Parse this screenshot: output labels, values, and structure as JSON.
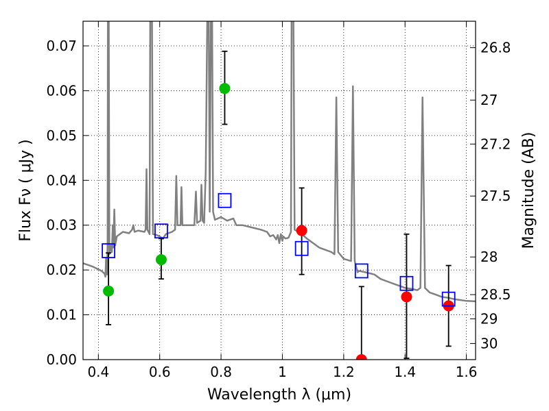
{
  "chart_data": {
    "type": "scatter",
    "xlabel": "Wavelength  λ (μm)",
    "ylabel": "Flux  Fν  ( μJy )",
    "y2label": "Magnitude (AB)",
    "xlim": [
      0.35,
      1.63
    ],
    "ylim": [
      0.0,
      0.0755
    ],
    "x_ticks": [
      0.4,
      0.6,
      0.8,
      1.0,
      1.2,
      1.4,
      1.6
    ],
    "x_tick_labels": [
      "0.4",
      "0.6",
      "0.8",
      "1",
      "1.2",
      "1.4",
      "1.6"
    ],
    "y_ticks": [
      0.0,
      0.01,
      0.02,
      0.03,
      0.04,
      0.05,
      0.06,
      0.07
    ],
    "y_tick_labels": [
      "0.00",
      "0.01",
      "0.02",
      "0.03",
      "0.04",
      "0.05",
      "0.06",
      "0.07"
    ],
    "y2_ticks": [
      {
        "label": "26.8",
        "flux": 0.0696
      },
      {
        "label": "27",
        "flux": 0.0579
      },
      {
        "label": "27.2",
        "flux": 0.0481
      },
      {
        "label": "27.5",
        "flux": 0.0365
      },
      {
        "label": "28",
        "flux": 0.0229
      },
      {
        "label": "28.5",
        "flux": 0.0145
      },
      {
        "label": "29",
        "flux": 0.0091
      },
      {
        "label": "30",
        "flux": 0.0036
      }
    ],
    "grid": true,
    "colors": {
      "spectrum": "#808080",
      "detection_green": "#00bb00",
      "detection_red": "#ff0000",
      "model_box": "#0000ff",
      "errorbar": "#000000"
    },
    "series": [
      {
        "type": "line",
        "points": [
          [
            0.35,
            0.0215
          ],
          [
            0.38,
            0.0208
          ],
          [
            0.41,
            0.0198
          ],
          [
            0.42,
            0.0192
          ],
          [
            0.423,
            0.0185
          ],
          [
            0.425,
            0.0225
          ],
          [
            0.428,
            0.019
          ],
          [
            0.43,
            0.0255
          ],
          [
            0.431,
            0.0758
          ],
          [
            0.434,
            0.0758
          ],
          [
            0.436,
            0.0235
          ],
          [
            0.44,
            0.0255
          ],
          [
            0.444,
            0.024
          ],
          [
            0.447,
            0.03
          ],
          [
            0.449,
            0.025
          ],
          [
            0.452,
            0.0335
          ],
          [
            0.455,
            0.0255
          ],
          [
            0.46,
            0.0275
          ],
          [
            0.48,
            0.0285
          ],
          [
            0.5,
            0.0282
          ],
          [
            0.51,
            0.029
          ],
          [
            0.514,
            0.03
          ],
          [
            0.518,
            0.0285
          ],
          [
            0.53,
            0.0288
          ],
          [
            0.55,
            0.0285
          ],
          [
            0.554,
            0.029
          ],
          [
            0.557,
            0.0425
          ],
          [
            0.56,
            0.029
          ],
          [
            0.567,
            0.028
          ],
          [
            0.569,
            0.0758
          ],
          [
            0.575,
            0.0758
          ],
          [
            0.578,
            0.028
          ],
          [
            0.59,
            0.0278
          ],
          [
            0.6,
            0.0275
          ],
          [
            0.61,
            0.027
          ],
          [
            0.62,
            0.028
          ],
          [
            0.64,
            0.0285
          ],
          [
            0.65,
            0.029
          ],
          [
            0.654,
            0.041
          ],
          [
            0.658,
            0.03
          ],
          [
            0.668,
            0.03
          ],
          [
            0.671,
            0.0385
          ],
          [
            0.674,
            0.03
          ],
          [
            0.7,
            0.03
          ],
          [
            0.713,
            0.03
          ],
          [
            0.718,
            0.0375
          ],
          [
            0.722,
            0.0305
          ],
          [
            0.733,
            0.031
          ],
          [
            0.736,
            0.039
          ],
          [
            0.74,
            0.031
          ],
          [
            0.745,
            0.0305
          ],
          [
            0.75,
            0.042
          ],
          [
            0.755,
            0.0758
          ],
          [
            0.76,
            0.0758
          ],
          [
            0.763,
            0.033
          ],
          [
            0.767,
            0.0758
          ],
          [
            0.771,
            0.0758
          ],
          [
            0.774,
            0.033
          ],
          [
            0.78,
            0.0312
          ],
          [
            0.8,
            0.0318
          ],
          [
            0.82,
            0.031
          ],
          [
            0.84,
            0.0315
          ],
          [
            0.85,
            0.03
          ],
          [
            0.87,
            0.03
          ],
          [
            0.9,
            0.0295
          ],
          [
            0.93,
            0.029
          ],
          [
            0.95,
            0.0285
          ],
          [
            0.96,
            0.0275
          ],
          [
            0.97,
            0.0278
          ],
          [
            0.98,
            0.0268
          ],
          [
            0.985,
            0.0278
          ],
          [
            0.99,
            0.026
          ],
          [
            0.995,
            0.028
          ],
          [
            1.0,
            0.0265
          ],
          [
            1.003,
            0.0275
          ],
          [
            1.01,
            0.027
          ],
          [
            1.02,
            0.0272
          ],
          [
            1.028,
            0.0285
          ],
          [
            1.03,
            0.0758
          ],
          [
            1.036,
            0.0758
          ],
          [
            1.04,
            0.029
          ],
          [
            1.06,
            0.0282
          ],
          [
            1.08,
            0.027
          ],
          [
            1.1,
            0.026
          ],
          [
            1.12,
            0.025
          ],
          [
            1.14,
            0.0245
          ],
          [
            1.16,
            0.024
          ],
          [
            1.17,
            0.0235
          ],
          [
            1.176,
            0.0585
          ],
          [
            1.182,
            0.024
          ],
          [
            1.2,
            0.0225
          ],
          [
            1.224,
            0.022
          ],
          [
            1.23,
            0.061
          ],
          [
            1.236,
            0.022
          ],
          [
            1.245,
            0.0195
          ],
          [
            1.25,
            0.0198
          ],
          [
            1.27,
            0.0195
          ],
          [
            1.3,
            0.019
          ],
          [
            1.32,
            0.018
          ],
          [
            1.34,
            0.0175
          ],
          [
            1.36,
            0.017
          ],
          [
            1.38,
            0.0165
          ],
          [
            1.4,
            0.016
          ],
          [
            1.42,
            0.0158
          ],
          [
            1.44,
            0.0155
          ],
          [
            1.45,
            0.016
          ],
          [
            1.457,
            0.0585
          ],
          [
            1.465,
            0.016
          ],
          [
            1.48,
            0.015
          ],
          [
            1.5,
            0.0145
          ],
          [
            1.52,
            0.014
          ],
          [
            1.54,
            0.0138
          ],
          [
            1.56,
            0.0135
          ],
          [
            1.58,
            0.0133
          ],
          [
            1.6,
            0.0131
          ],
          [
            1.63,
            0.013
          ]
        ]
      },
      {
        "type": "errorbar",
        "points": [
          {
            "x": 0.433,
            "y": 0.0153,
            "lo": 0.0078,
            "hi": 0.0238,
            "color": "detection_green"
          },
          {
            "x": 0.605,
            "y": 0.0223,
            "lo": 0.018,
            "hi": 0.027,
            "color": "detection_green"
          },
          {
            "x": 0.812,
            "y": 0.0605,
            "lo": 0.0525,
            "hi": 0.0688,
            "color": "detection_green"
          },
          {
            "x": 1.063,
            "y": 0.0288,
            "lo": 0.019,
            "hi": 0.0383,
            "color": "detection_red"
          },
          {
            "x": 1.258,
            "y": 0.0,
            "lo": 0.0,
            "hi": 0.0163,
            "color": "detection_red"
          },
          {
            "x": 1.405,
            "y": 0.014,
            "lo": 0.0003,
            "hi": 0.028,
            "color": "detection_red"
          },
          {
            "x": 1.542,
            "y": 0.012,
            "lo": 0.003,
            "hi": 0.021,
            "color": "detection_red"
          }
        ]
      },
      {
        "type": "scatter",
        "marker": "square",
        "points": [
          [
            0.433,
            0.0243
          ],
          [
            0.605,
            0.0287
          ],
          [
            0.812,
            0.0355
          ],
          [
            1.063,
            0.0248
          ],
          [
            1.258,
            0.0198
          ],
          [
            1.405,
            0.017
          ],
          [
            1.542,
            0.0135
          ]
        ]
      }
    ]
  }
}
